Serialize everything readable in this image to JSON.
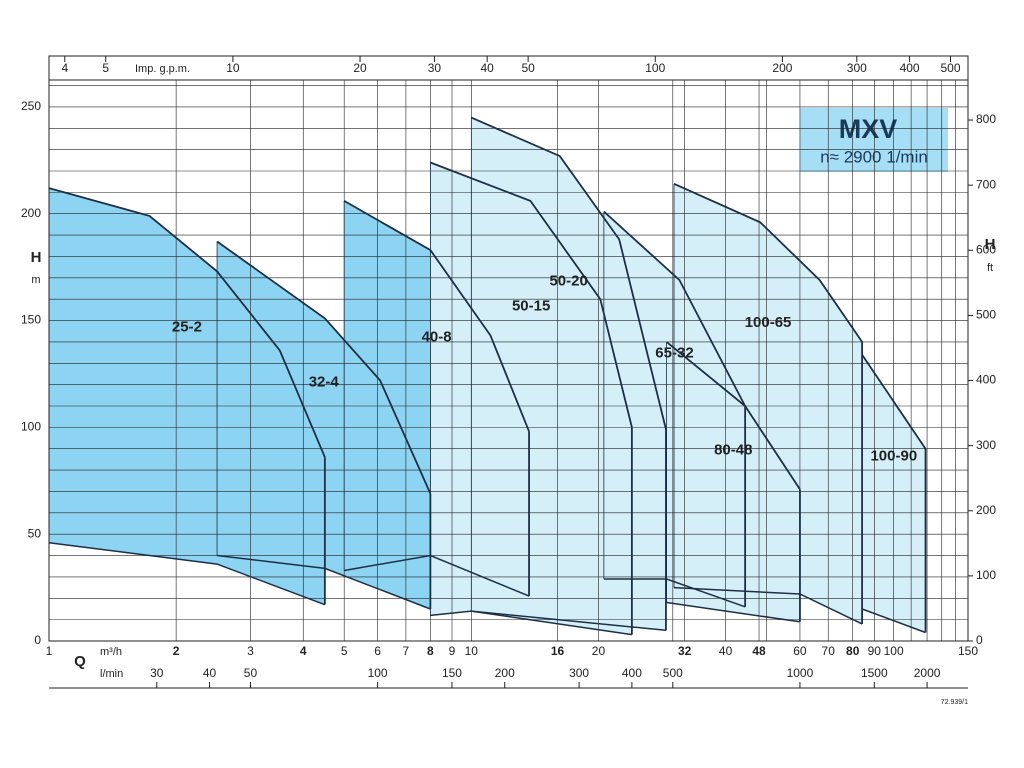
{
  "chart_data": {
    "type": "pump-range",
    "title": "MXV",
    "subtitle": "n≈ 2900 1/min",
    "y_label": "H",
    "y_unit": "m",
    "y2_label": "H",
    "y2_unit": "ft",
    "x_label": "Q",
    "x_unit": "m³/h",
    "x2_unit": "l/min",
    "x3_unit": "Imp. g.p.m.",
    "figure_code": "72.939/1",
    "log_x": true,
    "grid": true,
    "xlim": [
      1,
      150
    ],
    "xticks": [
      1,
      2,
      3,
      4,
      5,
      6,
      7,
      8,
      9,
      10,
      16,
      20,
      32,
      40,
      48,
      60,
      70,
      80,
      90,
      100,
      150
    ],
    "xgrid": [
      30,
      50,
      110,
      120,
      130,
      140
    ],
    "x2lim": [
      16.67,
      2500
    ],
    "x2ticks": [
      30,
      40,
      50,
      100,
      150,
      200,
      300,
      400,
      500,
      1000,
      1500,
      2000
    ],
    "x3lim": [
      3.67,
      550
    ],
    "x3ticks": [
      4,
      5,
      10,
      20,
      30,
      40,
      50,
      100,
      200,
      300,
      400,
      500
    ],
    "ylim": [
      0,
      262.6
    ],
    "yticks": [
      0,
      50,
      100,
      150,
      200,
      250
    ],
    "ygrid": [
      10,
      20,
      30,
      40,
      60,
      70,
      80,
      90,
      110,
      120,
      130,
      140,
      160,
      170,
      180,
      190,
      210,
      220,
      230,
      240,
      260
    ],
    "y2lim": [
      0,
      861.5
    ],
    "y2ticks": [
      0,
      100,
      200,
      300,
      400,
      500,
      600,
      700,
      800
    ],
    "series": [
      {
        "name": "25-2",
        "color": "#8dd3f2",
        "top": {
          "x": [
            1,
            1.73,
            2.5,
            3.52,
            4.5
          ],
          "y": [
            212,
            199,
            173,
            136,
            86
          ]
        },
        "bottom": {
          "x": [
            1,
            2.5,
            4.5
          ],
          "y": [
            46,
            36,
            17
          ]
        }
      },
      {
        "name": "32-4",
        "color": "#8dd3f2",
        "top": {
          "x": [
            2.5,
            4.5,
            6.08,
            8
          ],
          "y": [
            187,
            151,
            122,
            69
          ]
        },
        "bottom": {
          "x": [
            2.5,
            4.5,
            8
          ],
          "y": [
            40,
            34,
            15
          ]
        }
      },
      {
        "name": "40-8",
        "color": "#8dd3f2",
        "top": {
          "x": [
            5,
            8,
            11.1,
            13.7
          ],
          "y": [
            206,
            183,
            143,
            98
          ]
        },
        "bottom": {
          "x": [
            5,
            8,
            13.7
          ],
          "y": [
            33,
            40,
            21
          ]
        }
      },
      {
        "name": "50-15",
        "color": "#d5eff9",
        "top": {
          "x": [
            8,
            13.8,
            20.2,
            24
          ],
          "y": [
            224,
            206,
            160,
            100
          ]
        },
        "bottom": {
          "x": [
            8,
            10,
            24
          ],
          "y": [
            12,
            14,
            3
          ]
        }
      },
      {
        "name": "50-20",
        "color": "#d5eff9",
        "top": {
          "x": [
            10,
            16.2,
            22.4,
            28.9
          ],
          "y": [
            245,
            227,
            188,
            99
          ]
        },
        "bottom": {
          "x": [
            10,
            28.9
          ],
          "y": [
            14,
            5
          ]
        }
      },
      {
        "name": "65-32",
        "color": "#d5eff9",
        "top": {
          "x": [
            20.6,
            31.1,
            44.5
          ],
          "y": [
            201,
            169,
            110
          ]
        },
        "bottom": {
          "x": [
            20.6,
            29,
            44.5
          ],
          "y": [
            29,
            29,
            16
          ]
        }
      },
      {
        "name": "80-48",
        "color": "#d5eff9",
        "top": {
          "x": [
            29,
            44.5,
            60
          ],
          "y": [
            140,
            110,
            71
          ]
        },
        "bottom": {
          "x": [
            29,
            60
          ],
          "y": [
            18,
            9
          ]
        }
      },
      {
        "name": "100-65",
        "color": "#d5eff9",
        "top": {
          "x": [
            30.2,
            48.3,
            66.8,
            84.2
          ],
          "y": [
            214,
            196,
            169,
            140
          ]
        },
        "bottom": {
          "x": [
            30.2,
            60,
            84.2
          ],
          "y": [
            25,
            22,
            8
          ]
        }
      },
      {
        "name": "100-90",
        "color": "#d5eff9",
        "top": {
          "x": [
            84.2,
            119
          ],
          "y": [
            134,
            90
          ]
        },
        "bottom": {
          "x": [
            84.2,
            119
          ],
          "y": [
            15,
            4
          ]
        }
      }
    ]
  }
}
